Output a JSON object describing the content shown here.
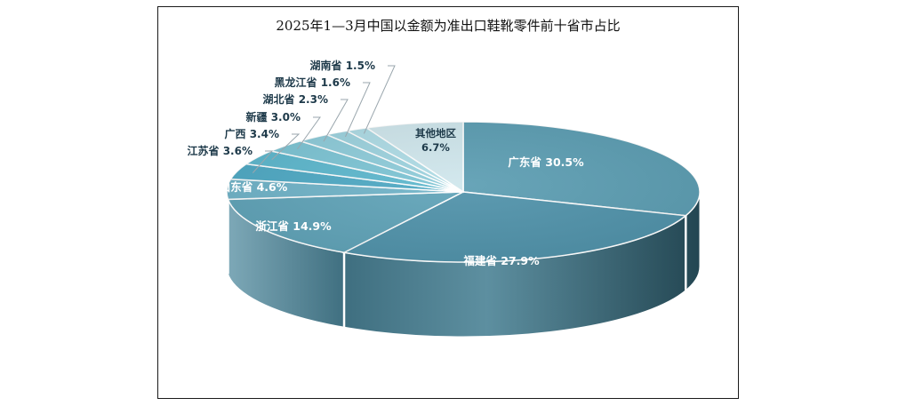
{
  "chart_data": {
    "type": "pie",
    "title": "2025年1—3月中国以金额为准出口鞋靴零件前十省市占比",
    "slices": [
      {
        "label": "广东省",
        "value": 30.5,
        "value_label": "30.5%",
        "color": "#5b9db2"
      },
      {
        "label": "福建省",
        "value": 27.9,
        "value_label": "27.9%",
        "color": "#4f92aa"
      },
      {
        "label": "浙江省",
        "value": 14.9,
        "value_label": "14.9%",
        "color": "#5fa3b8"
      },
      {
        "label": "山东省",
        "value": 4.6,
        "value_label": "4.6%",
        "color": "#6fb3c8"
      },
      {
        "label": "江苏省",
        "value": 3.6,
        "value_label": "3.6%",
        "color": "#4ea9c4"
      },
      {
        "label": "广西",
        "value": 3.4,
        "value_label": "3.4%",
        "color": "#5cb7cd"
      },
      {
        "label": "新疆",
        "value": 3.0,
        "value_label": "3.0%",
        "color": "#7cc4d4"
      },
      {
        "label": "湖北省",
        "value": 2.3,
        "value_label": "2.3%",
        "color": "#8dcbd9"
      },
      {
        "label": "黑龙江省",
        "value": 1.6,
        "value_label": "1.6%",
        "color": "#9cd2de"
      },
      {
        "label": "湖南省",
        "value": 1.5,
        "value_label": "1.5%",
        "color": "#addbe5"
      },
      {
        "label": "其他地区",
        "value": 6.7,
        "value_label": "6.7%",
        "color": "#cfe6ec"
      }
    ]
  }
}
